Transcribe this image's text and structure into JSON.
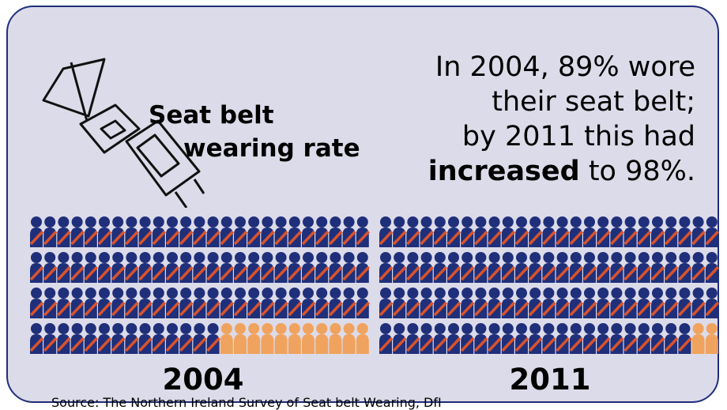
{
  "headline": {
    "line1": "Seat belt",
    "line2": "wearing rate"
  },
  "summary": {
    "line1": "In 2004, 89% wore",
    "line2": "their seat belt;",
    "line3": "by 2011 this had",
    "line4_bold": "increased",
    "line4_rest": " to 98%."
  },
  "groups": [
    {
      "year": "2004",
      "belted_count": 89,
      "total": 100
    },
    {
      "year": "2011",
      "belted_count": 98,
      "total": 100
    }
  ],
  "source": "Source: The Northern Ireland Survey of Seat belt Wearing, DfI",
  "colors": {
    "panel_bg": "#dcdbe9",
    "border": "#1f2f7a",
    "person_belted": "#1f2f7a",
    "belt_strap": "#d9532c",
    "person_unbelted": "#f0a35e"
  },
  "icons": {
    "illustration": "seat-belt-buckle-icon",
    "person": "person-icon"
  }
}
